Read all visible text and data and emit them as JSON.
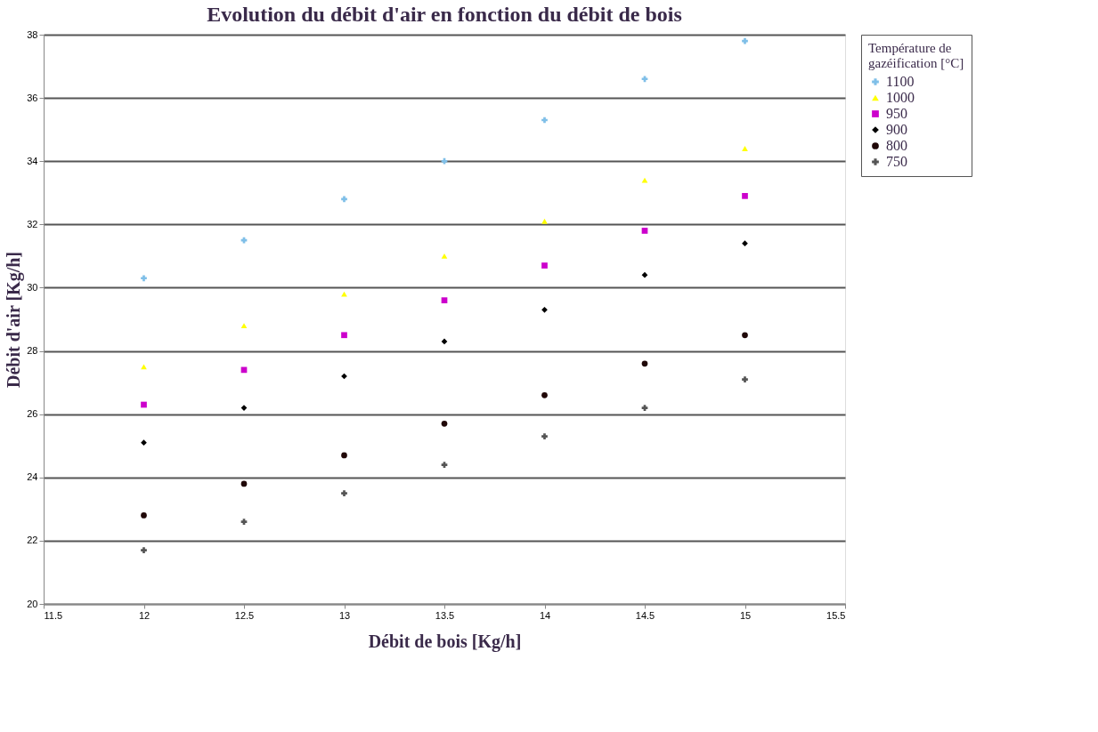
{
  "chart_data": {
    "type": "scatter",
    "title": "Evolution du débit d'air en fonction du débit de bois",
    "xlabel": "Débit de bois [Kg/h]",
    "ylabel": "Débit d'air [Kg/h]",
    "legend_title": "Température de gazéification [°C]",
    "x": [
      12,
      12.5,
      13,
      13.5,
      14,
      14.5,
      15
    ],
    "series": [
      {
        "name": "1100",
        "color": "#7fbfe8",
        "marker": "cross",
        "values": [
          30.3,
          31.5,
          32.8,
          34.0,
          35.3,
          36.6,
          37.8
        ]
      },
      {
        "name": "1000",
        "color": "#ffff00",
        "marker": "triangle",
        "values": [
          27.5,
          28.8,
          29.8,
          31.0,
          32.1,
          33.4,
          34.4
        ]
      },
      {
        "name": "950",
        "color": "#cc00cc",
        "marker": "square",
        "values": [
          26.3,
          27.4,
          28.5,
          29.6,
          30.7,
          31.8,
          32.9
        ]
      },
      {
        "name": "900",
        "color": "#000000",
        "marker": "diamond",
        "values": [
          25.1,
          26.2,
          27.2,
          28.3,
          29.3,
          30.4,
          31.4
        ]
      },
      {
        "name": "800",
        "color": "#200808",
        "marker": "circle",
        "values": [
          22.8,
          23.8,
          24.7,
          25.7,
          26.6,
          27.6,
          28.5
        ]
      },
      {
        "name": "750",
        "color": "#555555",
        "marker": "cross",
        "values": [
          21.7,
          22.6,
          23.5,
          24.4,
          25.3,
          26.2,
          27.1
        ]
      }
    ],
    "xlim": [
      11.5,
      15.5
    ],
    "xticks": [
      11.5,
      12,
      12.5,
      13,
      13.5,
      14,
      14.5,
      15,
      15.5
    ],
    "ylim": [
      20,
      38
    ],
    "yticks": [
      20,
      22,
      24,
      26,
      28,
      30,
      32,
      34,
      36,
      38
    ],
    "grid": "y",
    "legend": "right"
  }
}
